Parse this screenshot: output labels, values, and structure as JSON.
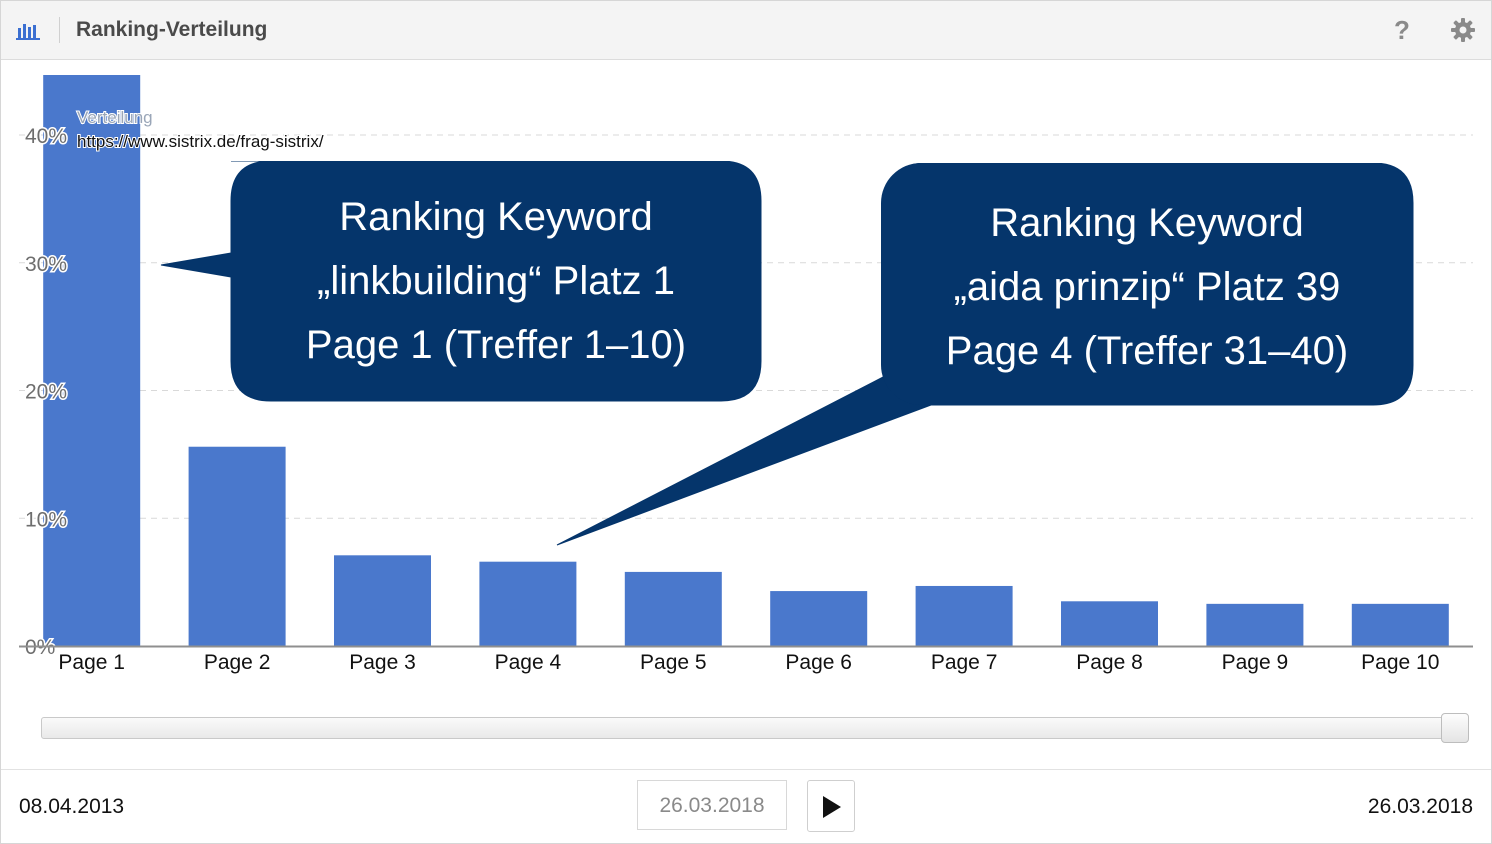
{
  "header": {
    "title": "Ranking-Verteilung",
    "chart_icon": "bar-chart-icon",
    "help_label": "?",
    "settings_icon": "gear-icon"
  },
  "chart_data": {
    "type": "bar",
    "categories": [
      "Page 1",
      "Page 2",
      "Page 3",
      "Page 4",
      "Page 5",
      "Page 6",
      "Page 7",
      "Page 8",
      "Page 9",
      "Page 10"
    ],
    "series": [
      {
        "name": "Verteilung",
        "url": "https://www.sistrix.de/frag-sistrix/",
        "values": [
          44.7,
          15.6,
          7.1,
          6.6,
          5.8,
          4.3,
          4.7,
          3.5,
          3.3,
          3.3
        ]
      }
    ],
    "yticks": [
      "0%",
      "10%",
      "20%",
      "30%",
      "40%"
    ],
    "ylim": [
      0,
      44.7
    ],
    "grid": true,
    "color": "#4a78cc"
  },
  "callouts": [
    {
      "line1": "Ranking Keyword",
      "line2": "„linkbuilding“ Platz 1",
      "line3": "Page 1 (Treffer 1–10)"
    },
    {
      "line1": "Ranking Keyword",
      "line2": "„aida prinzip“ Platz 39",
      "line3": "Page 4 (Treffer 31–40)"
    }
  ],
  "callout_color": "#05356b",
  "timeline": {
    "start_date": "08.04.2013",
    "end_date": "26.03.2018",
    "current_date": "26.03.2018",
    "position": 1.0,
    "play_icon": "play-icon"
  }
}
